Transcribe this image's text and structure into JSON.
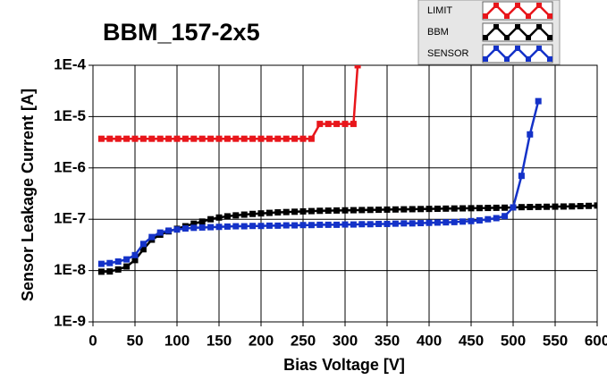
{
  "chart_data": {
    "type": "line",
    "title": "BBM_157-2x5",
    "x_label": "Bias Voltage [V]",
    "y_label": "Sensor Leakage Current [A]",
    "log_y": true,
    "grid": true,
    "legend": "top-right",
    "xlim": [
      0,
      600
    ],
    "xticks": [
      0,
      50,
      100,
      150,
      200,
      250,
      300,
      350,
      400,
      450,
      500,
      550,
      600
    ],
    "ylim": [
      1e-09,
      0.0001
    ],
    "yticks": [
      {
        "value": 1e-09,
        "label": "1E-9"
      },
      {
        "value": 1e-08,
        "label": "1E-8"
      },
      {
        "value": 1e-07,
        "label": "1E-7"
      },
      {
        "value": 1e-06,
        "label": "1E-6"
      },
      {
        "value": 1e-05,
        "label": "1E-5"
      },
      {
        "value": 0.0001,
        "label": "1E-4"
      }
    ],
    "series": [
      {
        "name": "LIMIT",
        "color": "#e8161b",
        "x": [
          10,
          20,
          30,
          40,
          50,
          60,
          70,
          80,
          90,
          100,
          110,
          120,
          130,
          140,
          150,
          160,
          170,
          180,
          190,
          200,
          210,
          220,
          230,
          240,
          250,
          260,
          270,
          280,
          290,
          300,
          310,
          315
        ],
        "values": [
          3.7e-06,
          3.7e-06,
          3.7e-06,
          3.7e-06,
          3.7e-06,
          3.7e-06,
          3.7e-06,
          3.7e-06,
          3.7e-06,
          3.7e-06,
          3.7e-06,
          3.7e-06,
          3.7e-06,
          3.7e-06,
          3.7e-06,
          3.7e-06,
          3.7e-06,
          3.7e-06,
          3.7e-06,
          3.7e-06,
          3.7e-06,
          3.7e-06,
          3.7e-06,
          3.7e-06,
          3.7e-06,
          3.7e-06,
          7.2e-06,
          7.2e-06,
          7.2e-06,
          7.2e-06,
          7.2e-06,
          0.0001
        ]
      },
      {
        "name": "BBM",
        "color": "#000000",
        "x": [
          10,
          20,
          30,
          40,
          50,
          60,
          70,
          80,
          90,
          100,
          110,
          120,
          130,
          140,
          150,
          160,
          170,
          180,
          190,
          200,
          210,
          220,
          230,
          240,
          250,
          260,
          270,
          280,
          290,
          300,
          310,
          320,
          330,
          340,
          350,
          360,
          370,
          380,
          390,
          400,
          410,
          420,
          430,
          440,
          450,
          460,
          470,
          480,
          490,
          500,
          510,
          520,
          530,
          540,
          550,
          560,
          570,
          580,
          590,
          600
        ],
        "values": [
          9.5e-09,
          9.6e-09,
          1.05e-08,
          1.2e-08,
          1.6e-08,
          2.6e-08,
          4e-08,
          5e-08,
          5.8e-08,
          6.5e-08,
          7.3e-08,
          8.2e-08,
          9e-08,
          1e-07,
          1.08e-07,
          1.14e-07,
          1.19e-07,
          1.23e-07,
          1.27e-07,
          1.3e-07,
          1.33e-07,
          1.36e-07,
          1.38e-07,
          1.4e-07,
          1.42e-07,
          1.44e-07,
          1.46e-07,
          1.47e-07,
          1.48e-07,
          1.49e-07,
          1.5e-07,
          1.51e-07,
          1.52e-07,
          1.53e-07,
          1.54e-07,
          1.55e-07,
          1.56e-07,
          1.57e-07,
          1.58e-07,
          1.59e-07,
          1.6e-07,
          1.61e-07,
          1.62e-07,
          1.63e-07,
          1.64e-07,
          1.65e-07,
          1.66e-07,
          1.67e-07,
          1.68e-07,
          1.7e-07,
          1.72e-07,
          1.73e-07,
          1.74e-07,
          1.75e-07,
          1.76e-07,
          1.77e-07,
          1.78e-07,
          1.8e-07,
          1.82e-07,
          1.85e-07
        ]
      },
      {
        "name": "SENSOR",
        "color": "#1432c8",
        "x": [
          10,
          20,
          30,
          40,
          50,
          60,
          70,
          80,
          90,
          100,
          110,
          120,
          130,
          140,
          150,
          160,
          170,
          180,
          190,
          200,
          210,
          220,
          230,
          240,
          250,
          260,
          270,
          280,
          290,
          300,
          310,
          320,
          330,
          340,
          350,
          360,
          370,
          380,
          390,
          400,
          410,
          420,
          430,
          440,
          450,
          460,
          470,
          480,
          490,
          500,
          510,
          520,
          530
        ],
        "values": [
          1.35e-08,
          1.4e-08,
          1.5e-08,
          1.65e-08,
          2e-08,
          3.3e-08,
          4.5e-08,
          5.5e-08,
          6e-08,
          6.3e-08,
          6.6e-08,
          6.8e-08,
          6.9e-08,
          7e-08,
          7.1e-08,
          7.2e-08,
          7.3e-08,
          7.3e-08,
          7.4e-08,
          7.4e-08,
          7.5e-08,
          7.5e-08,
          7.6e-08,
          7.6e-08,
          7.7e-08,
          7.7e-08,
          7.8e-08,
          7.8e-08,
          7.8e-08,
          7.9e-08,
          7.9e-08,
          8e-08,
          8e-08,
          8.1e-08,
          8.1e-08,
          8.2e-08,
          8.3e-08,
          8.3e-08,
          8.4e-08,
          8.5e-08,
          8.6e-08,
          8.7e-08,
          8.8e-08,
          9e-08,
          9.2e-08,
          9.5e-08,
          1e-07,
          1.05e-07,
          1.15e-07,
          1.7e-07,
          7e-07,
          4.5e-06,
          2e-05
        ]
      }
    ]
  }
}
